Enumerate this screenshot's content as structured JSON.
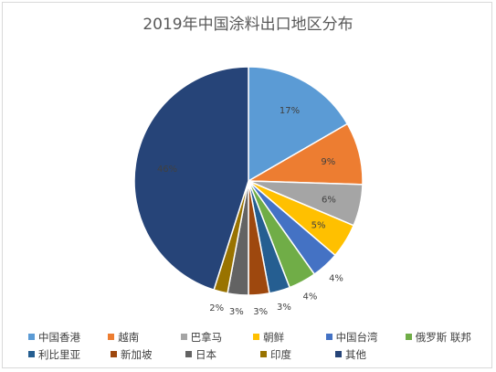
{
  "title": "2019年中国涂料出口地区分布",
  "chart_data": {
    "type": "pie",
    "title": "2019年中国涂料出口地区分布",
    "start_angle": "12 o'clock, clockwise",
    "legend_position": "bottom",
    "slices": [
      {
        "name": "中国香港",
        "value": 17,
        "label": "17%",
        "color": "#5B9BD5"
      },
      {
        "name": "越南",
        "value": 9,
        "label": "9%",
        "color": "#ED7D31"
      },
      {
        "name": "巴拿马",
        "value": 6,
        "label": "6%",
        "color": "#A5A5A5"
      },
      {
        "name": "朝鲜",
        "value": 5,
        "label": "5%",
        "color": "#FFC000"
      },
      {
        "name": "中国台湾",
        "value": 4,
        "label": "4%",
        "color": "#4472C4"
      },
      {
        "name": "俄罗斯 联邦",
        "value": 4,
        "label": "4%",
        "color": "#70AD47"
      },
      {
        "name": "利比里亚",
        "value": 3,
        "label": "3%",
        "color": "#255E91"
      },
      {
        "name": "新加坡",
        "value": 3,
        "label": "3%",
        "color": "#9E480E"
      },
      {
        "name": "日本",
        "value": 3,
        "label": "3%",
        "color": "#636363"
      },
      {
        "name": "印度",
        "value": 2,
        "label": "2%",
        "color": "#997300"
      },
      {
        "name": "其他",
        "value": 46,
        "label": "46%",
        "color": "#264478"
      }
    ]
  },
  "legend": {
    "rows": [
      [
        "中国香港",
        "越南",
        "巴拿马",
        "朝鲜",
        "中国台湾",
        "俄罗斯 联邦"
      ],
      [
        "利比里亚",
        "新加坡",
        "日本",
        "印度",
        "其他"
      ]
    ]
  }
}
